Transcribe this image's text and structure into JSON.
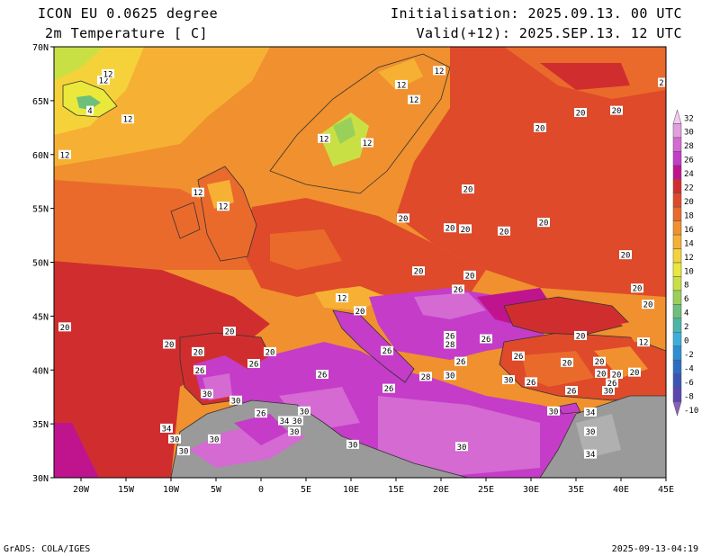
{
  "header": {
    "model": "ICON EU 0.0625 degree",
    "variable": "2m Temperature [ C]",
    "init": "Initialisation: 2025.09.13. 00 UTC",
    "valid": "Valid(+12): 2025.SEP.13. 12 UTC"
  },
  "map": {
    "lon_range": [
      -23,
      45
    ],
    "lat_range": [
      30,
      70
    ],
    "lat_ticks": [
      "30N",
      "35N",
      "40N",
      "45N",
      "50N",
      "55N",
      "60N",
      "65N",
      "70N"
    ],
    "lon_ticks": [
      "20W",
      "15W",
      "10W",
      "5W",
      "0",
      "5E",
      "10E",
      "15E",
      "20E",
      "25E",
      "30E",
      "35E",
      "40E",
      "45E"
    ],
    "contour_labels": [
      {
        "lon": -17.5,
        "lat": 66.9,
        "t": "12"
      },
      {
        "lon": -19,
        "lat": 64.1,
        "t": "4"
      },
      {
        "lon": -14.8,
        "lat": 63.3,
        "t": "12"
      },
      {
        "lon": -21.8,
        "lat": 60,
        "t": "12"
      },
      {
        "lon": -17,
        "lat": 67.5,
        "t": "12"
      },
      {
        "lon": -7,
        "lat": 56.5,
        "t": "12"
      },
      {
        "lon": -4.2,
        "lat": 55.2,
        "t": "12"
      },
      {
        "lon": 7,
        "lat": 61.5,
        "t": "12"
      },
      {
        "lon": 11.8,
        "lat": 61.1,
        "t": "12"
      },
      {
        "lon": 15.6,
        "lat": 66.5,
        "t": "12"
      },
      {
        "lon": 17,
        "lat": 65.1,
        "t": "12"
      },
      {
        "lon": 19.8,
        "lat": 67.8,
        "t": "12"
      },
      {
        "lon": 35.5,
        "lat": 63.9,
        "t": "20"
      },
      {
        "lon": 39.5,
        "lat": 64.1,
        "t": "20"
      },
      {
        "lon": 31,
        "lat": 62.5,
        "t": "20"
      },
      {
        "lon": 44.5,
        "lat": 66.7,
        "t": "2"
      },
      {
        "lon": 23,
        "lat": 56.8,
        "t": "20"
      },
      {
        "lon": 31.4,
        "lat": 53.7,
        "t": "20"
      },
      {
        "lon": 15.8,
        "lat": 54.1,
        "t": "20"
      },
      {
        "lon": 21,
        "lat": 53.2,
        "t": "20"
      },
      {
        "lon": 22.7,
        "lat": 53.1,
        "t": "20"
      },
      {
        "lon": 27,
        "lat": 52.9,
        "t": "20"
      },
      {
        "lon": 17.5,
        "lat": 49.2,
        "t": "20"
      },
      {
        "lon": 40.5,
        "lat": 50.7,
        "t": "20"
      },
      {
        "lon": 23.2,
        "lat": 48.8,
        "t": "20"
      },
      {
        "lon": 21.9,
        "lat": 47.5,
        "t": "26"
      },
      {
        "lon": 9,
        "lat": 46.7,
        "t": "12"
      },
      {
        "lon": 11,
        "lat": 45.5,
        "t": "20"
      },
      {
        "lon": 35.5,
        "lat": 43.2,
        "t": "20"
      },
      {
        "lon": 41.8,
        "lat": 47.6,
        "t": "20"
      },
      {
        "lon": 43,
        "lat": 46.1,
        "t": "20"
      },
      {
        "lon": 42.5,
        "lat": 42.6,
        "t": "12"
      },
      {
        "lon": -21.8,
        "lat": 44,
        "t": "20"
      },
      {
        "lon": -3.5,
        "lat": 43.6,
        "t": "20"
      },
      {
        "lon": -10.2,
        "lat": 42.4,
        "t": "20"
      },
      {
        "lon": -7,
        "lat": 41.7,
        "t": "20"
      },
      {
        "lon": 1,
        "lat": 41.7,
        "t": "20"
      },
      {
        "lon": -6.8,
        "lat": 40,
        "t": "26"
      },
      {
        "lon": -0.8,
        "lat": 40.6,
        "t": "26"
      },
      {
        "lon": -6,
        "lat": 37.8,
        "t": "30"
      },
      {
        "lon": -2.8,
        "lat": 37.2,
        "t": "30"
      },
      {
        "lon": 0,
        "lat": 36,
        "t": "26"
      },
      {
        "lon": 2.6,
        "lat": 35.3,
        "t": "34"
      },
      {
        "lon": 4,
        "lat": 35.3,
        "t": "30"
      },
      {
        "lon": 4.8,
        "lat": 36.2,
        "t": "30"
      },
      {
        "lon": 14,
        "lat": 41.8,
        "t": "26"
      },
      {
        "lon": 6.8,
        "lat": 39.6,
        "t": "26"
      },
      {
        "lon": 14.2,
        "lat": 38.3,
        "t": "26"
      },
      {
        "lon": 18.3,
        "lat": 39.4,
        "t": "28"
      },
      {
        "lon": 21,
        "lat": 43.2,
        "t": "26"
      },
      {
        "lon": 21,
        "lat": 42.4,
        "t": "28"
      },
      {
        "lon": 25,
        "lat": 42.9,
        "t": "26"
      },
      {
        "lon": 21,
        "lat": 39.5,
        "t": "30"
      },
      {
        "lon": 22.2,
        "lat": 40.8,
        "t": "26"
      },
      {
        "lon": 28.6,
        "lat": 41.3,
        "t": "26"
      },
      {
        "lon": 27.5,
        "lat": 39.1,
        "t": "30"
      },
      {
        "lon": 30,
        "lat": 38.9,
        "t": "26"
      },
      {
        "lon": 34.5,
        "lat": 38.1,
        "t": "26"
      },
      {
        "lon": 34,
        "lat": 40.7,
        "t": "20"
      },
      {
        "lon": 37.6,
        "lat": 40.8,
        "t": "20"
      },
      {
        "lon": 37.8,
        "lat": 39.7,
        "t": "20"
      },
      {
        "lon": 39.5,
        "lat": 39.6,
        "t": "20"
      },
      {
        "lon": 41.5,
        "lat": 39.8,
        "t": "20"
      },
      {
        "lon": 39,
        "lat": 38.8,
        "t": "26"
      },
      {
        "lon": 38.6,
        "lat": 38.1,
        "t": "30"
      },
      {
        "lon": 32.5,
        "lat": 36.2,
        "t": "30"
      },
      {
        "lon": 36.6,
        "lat": 36.1,
        "t": "34"
      },
      {
        "lon": 36.6,
        "lat": 34.3,
        "t": "30"
      },
      {
        "lon": 36.6,
        "lat": 32.2,
        "t": "34"
      },
      {
        "lon": -10.5,
        "lat": 34.6,
        "t": "34"
      },
      {
        "lon": -9.6,
        "lat": 33.6,
        "t": "30"
      },
      {
        "lon": -8.6,
        "lat": 32.5,
        "t": "30"
      },
      {
        "lon": -5.2,
        "lat": 33.6,
        "t": "30"
      },
      {
        "lon": 3.7,
        "lat": 34.3,
        "t": "30"
      },
      {
        "lon": 10.2,
        "lat": 33.1,
        "t": "30"
      },
      {
        "lon": 22.3,
        "lat": 32.9,
        "t": "30"
      }
    ]
  },
  "colorbar": {
    "levels": [
      "32",
      "30",
      "28",
      "26",
      "24",
      "22",
      "20",
      "18",
      "16",
      "14",
      "12",
      "10",
      "8",
      "6",
      "4",
      "2",
      "0",
      "-2",
      "-4",
      "-6",
      "-8",
      "-10"
    ],
    "colors": [
      "#f4c8f0",
      "#e29ee0",
      "#d46ad2",
      "#c43cc8",
      "#c0148e",
      "#d02e2e",
      "#de4a2a",
      "#ea6a2c",
      "#f0902e",
      "#f6b134",
      "#f6d23a",
      "#eae83a",
      "#c9e045",
      "#99d05a",
      "#6cc07a",
      "#4bb5aa",
      "#39b0dc",
      "#2a8fd4",
      "#2a6ec4",
      "#3a54b6",
      "#5a46b0",
      "#8a5ec0"
    ]
  },
  "footer": {
    "left": "GrADS: COLA/IGES",
    "right": "2025-09-13-04:19"
  }
}
